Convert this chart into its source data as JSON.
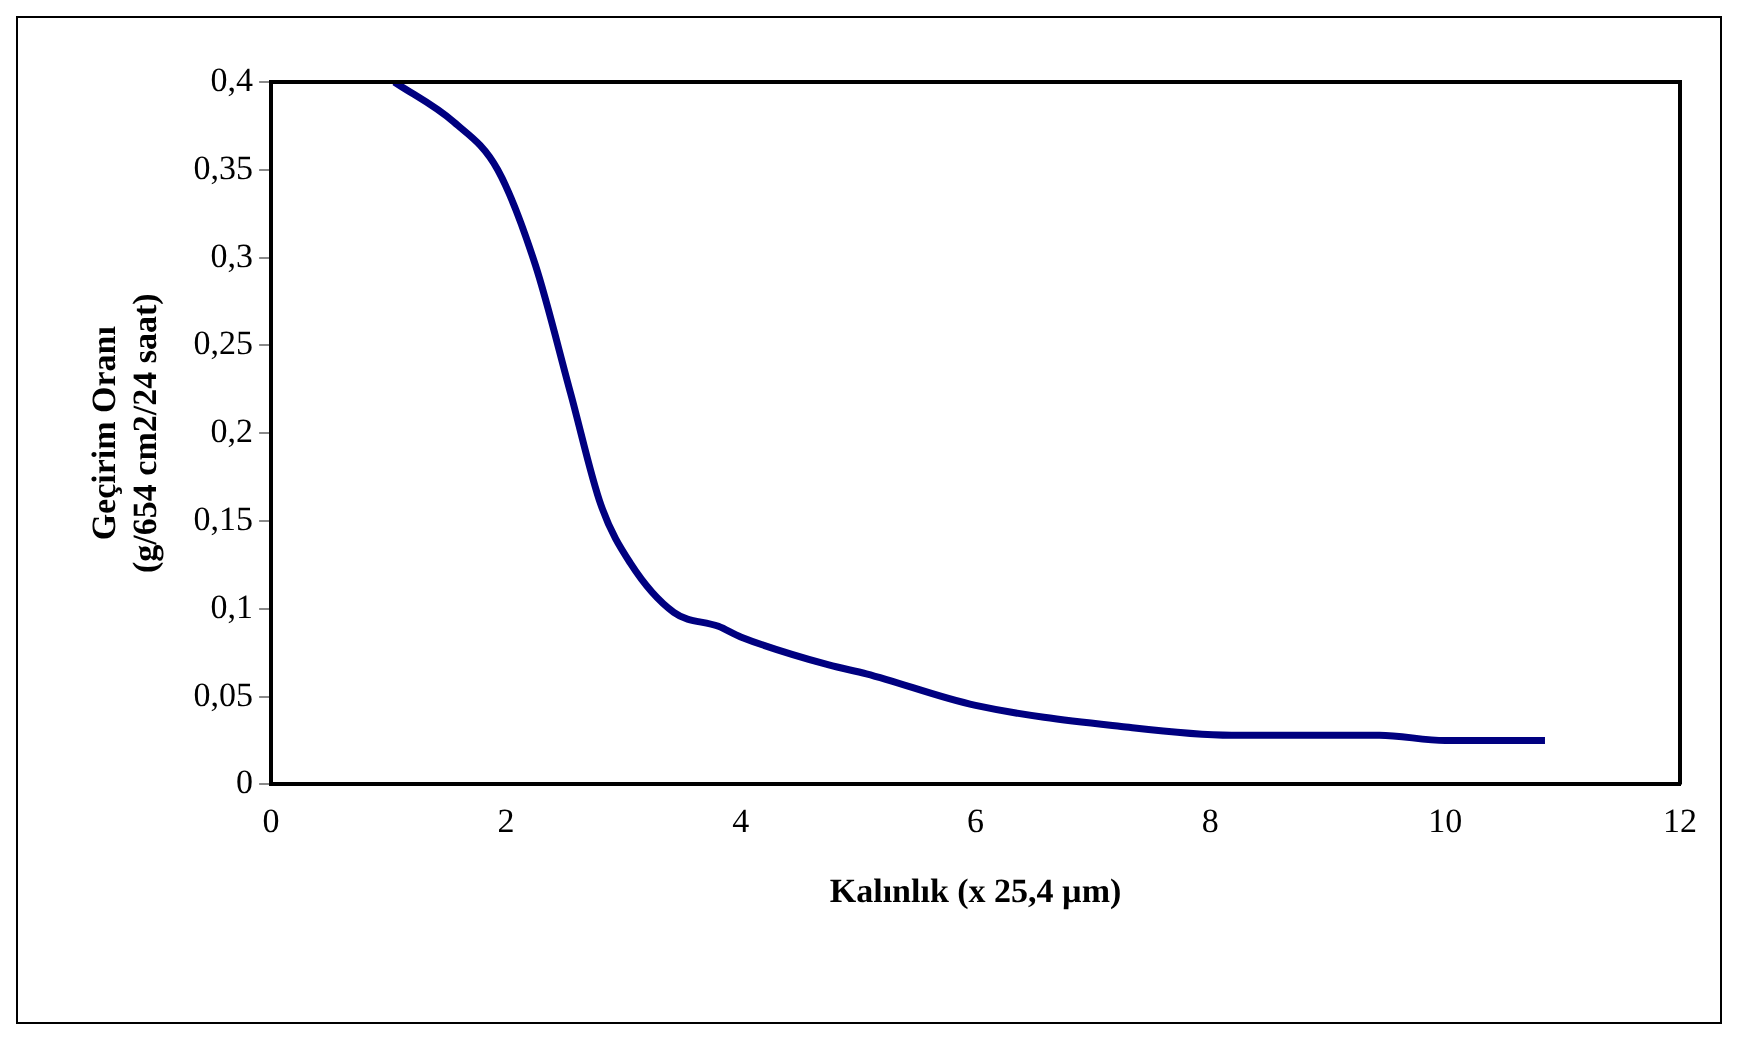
{
  "chart_data": {
    "type": "line",
    "xlabel": "Kalınlık (x 25,4 µm)",
    "ylabel": "Geçirim Oranı\n(g/654 cm2/24 saat)",
    "series": [
      {
        "color": "#000080",
        "x": [
          1.05,
          1.56,
          1.93,
          2.25,
          2.55,
          2.81,
          3.06,
          3.43,
          3.81,
          4.0,
          4.75,
          5.07,
          6.0,
          7.24,
          8.18,
          9.44,
          10.0,
          10.85
        ],
        "values": [
          0.4,
          0.377,
          0.35,
          0.296,
          0.223,
          0.159,
          0.126,
          0.098,
          0.09,
          0.084,
          0.068,
          0.063,
          0.045,
          0.033,
          0.028,
          0.028,
          0.025,
          0.025
        ]
      }
    ],
    "xlim": [
      0,
      12
    ],
    "xticks": [
      0,
      2,
      4,
      6,
      8,
      10,
      12
    ],
    "ylim": [
      0,
      0.4
    ],
    "yticks": [
      {
        "value": 0,
        "label": "0"
      },
      {
        "value": 0.05,
        "label": "0,05"
      },
      {
        "value": 0.1,
        "label": "0,1"
      },
      {
        "value": 0.15,
        "label": "0,15"
      },
      {
        "value": 0.2,
        "label": "0,2"
      },
      {
        "value": 0.25,
        "label": "0,25"
      },
      {
        "value": 0.3,
        "label": "0,3"
      },
      {
        "value": 0.35,
        "label": "0,35"
      },
      {
        "value": 0.4,
        "label": "0,4"
      }
    ],
    "grid": false,
    "legend": false,
    "marker": "none",
    "line_style": "solid"
  }
}
